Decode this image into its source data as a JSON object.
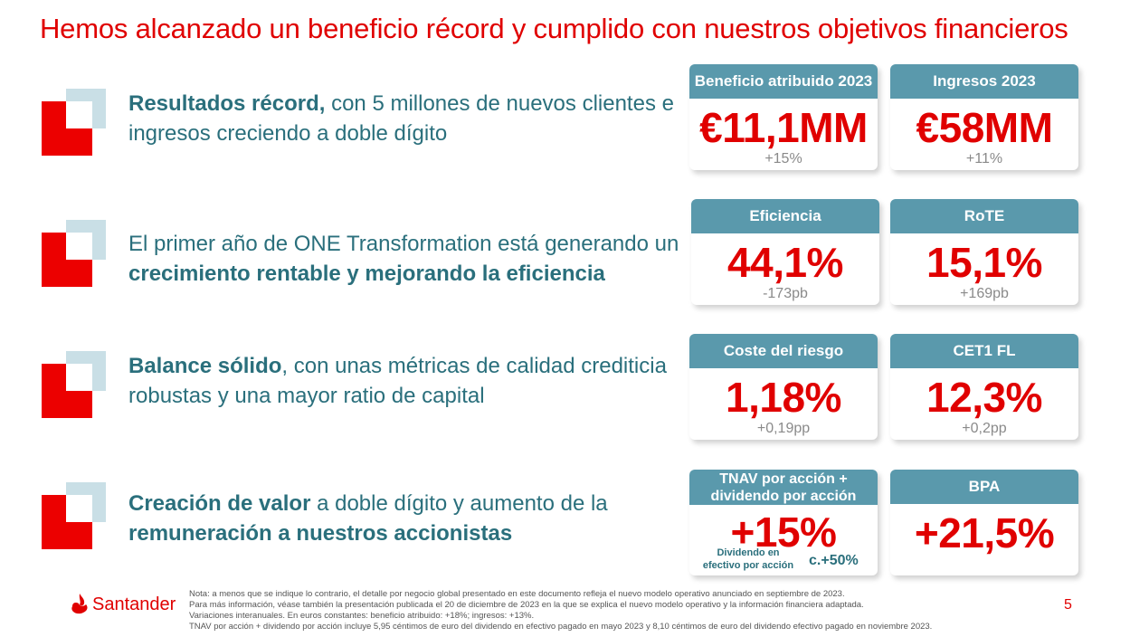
{
  "title": "Hemos alcanzado un beneficio récord y cumplido con nuestros objetivos financieros",
  "rows": [
    {
      "parts": [
        {
          "text": "Resultados récord,",
          "bold": true
        },
        {
          "text": " con 5 millones de nuevos clientes e ingresos creciendo a doble dígito",
          "bold": false
        }
      ]
    },
    {
      "parts": [
        {
          "text": "El primer año de ONE Transformation está generando un ",
          "bold": false
        },
        {
          "text": "crecimiento rentable y mejorando la eficiencia",
          "bold": true
        }
      ]
    },
    {
      "parts": [
        {
          "text": "Balance sólido",
          "bold": true
        },
        {
          "text": ", con unas métricas de calidad crediticia robustas y una mayor ratio de capital",
          "bold": false
        }
      ]
    },
    {
      "parts": [
        {
          "text": "Creación de valor",
          "bold": true
        },
        {
          "text": " a doble dígito y aumento de la ",
          "bold": false
        },
        {
          "text": "remuneración a nuestros accionistas",
          "bold": true
        }
      ]
    }
  ],
  "cards": [
    {
      "head": "Beneficio atribuido 2023",
      "value": "€11,1MM",
      "sub": "+15%"
    },
    {
      "head": "Ingresos 2023",
      "value": "€58MM",
      "sub": "+11%"
    },
    {
      "head": "Eficiencia",
      "value": "44,1%",
      "sub": "-173pb"
    },
    {
      "head": "RoTE",
      "value": "15,1%",
      "sub": "+169pb"
    },
    {
      "head": "Coste del riesgo",
      "value": "1,18%",
      "sub": "+0,19pp"
    },
    {
      "head": "CET1 FL",
      "value": "12,3%",
      "sub": "+0,2pp"
    },
    {
      "head_line1": "TNAV por acción +",
      "head_line2": "dividendo por acción",
      "value": "+15%",
      "dividend_label_line1": "Dividendo en",
      "dividend_label_line2": "efectivo por acción",
      "dividend_value": "c.+50%"
    },
    {
      "head": "BPA",
      "value": "+21,5%"
    }
  ],
  "footer": {
    "brand": "Santander",
    "page": "5",
    "notes": [
      "Nota: a menos que se indique lo contrario, el detalle por negocio global presentado en este documento refleja el nuevo modelo operativo anunciado en septiembre de 2023.",
      "Para más información, véase también la presentación publicada el 20 de diciembre de 2023 en la que se explica el nuevo modelo operativo y la información financiera adaptada.",
      "Variaciones interanuales. En euros constantes: beneficio atribuido: +18%; ingresos: +13%.",
      "TNAV por acción + dividendo por acción incluye 5,95 céntimos de euro del dividendo en efectivo pagado en mayo 2023 y 8,10 céntimos de euro del dividendo efectivo pagado en noviembre 2023."
    ]
  },
  "colors": {
    "accent_red": "#ec0000",
    "teal_text": "#2a6f7c",
    "card_header": "#5a99ac",
    "light_square": "#c9dfe6"
  },
  "icons": [
    "santander-flame-icon",
    "bullet-square-icon"
  ]
}
